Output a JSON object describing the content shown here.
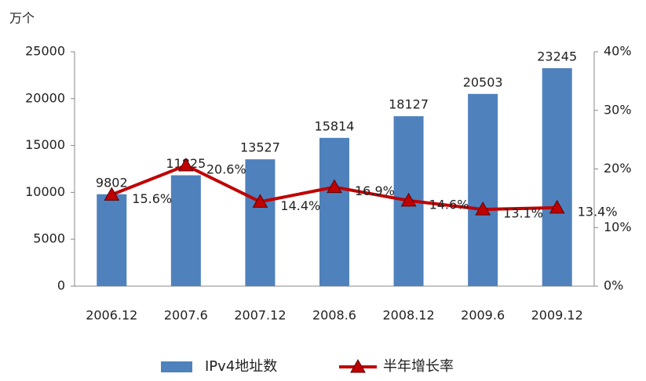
{
  "chart_data": {
    "type": "bar",
    "y_axis_label": "万个",
    "categories": [
      "2006.12",
      "2007.6",
      "2007.12",
      "2008.6",
      "2008.12",
      "2009.6",
      "2009.12"
    ],
    "series": [
      {
        "name": "IPv4地址数",
        "type": "bar",
        "color": "#4f81bd",
        "values": [
          9802,
          11825,
          13527,
          15814,
          18127,
          20503,
          23245
        ]
      },
      {
        "name": "半年增长率",
        "type": "line",
        "axis": "y2",
        "color": "#c00000",
        "marker_color": "#c00000",
        "values": [
          15.6,
          20.6,
          14.4,
          16.9,
          14.6,
          13.1,
          13.4
        ],
        "value_labels": [
          "15.6%",
          "20.6%",
          "14.4%",
          "16.9%",
          "14.6%",
          "13.1%",
          "13.4%"
        ]
      }
    ],
    "ylim": [
      0,
      25000
    ],
    "yticks": [
      0,
      5000,
      10000,
      15000,
      20000,
      25000
    ],
    "y2lim": [
      0,
      40
    ],
    "y2ticks": [
      {
        "value": 0,
        "label": "0%"
      },
      {
        "value": 10,
        "label": "10%"
      },
      {
        "value": 20,
        "label": "20%"
      },
      {
        "value": 30,
        "label": "30%"
      },
      {
        "value": 40,
        "label": "40%"
      }
    ],
    "legend": "bottom"
  }
}
